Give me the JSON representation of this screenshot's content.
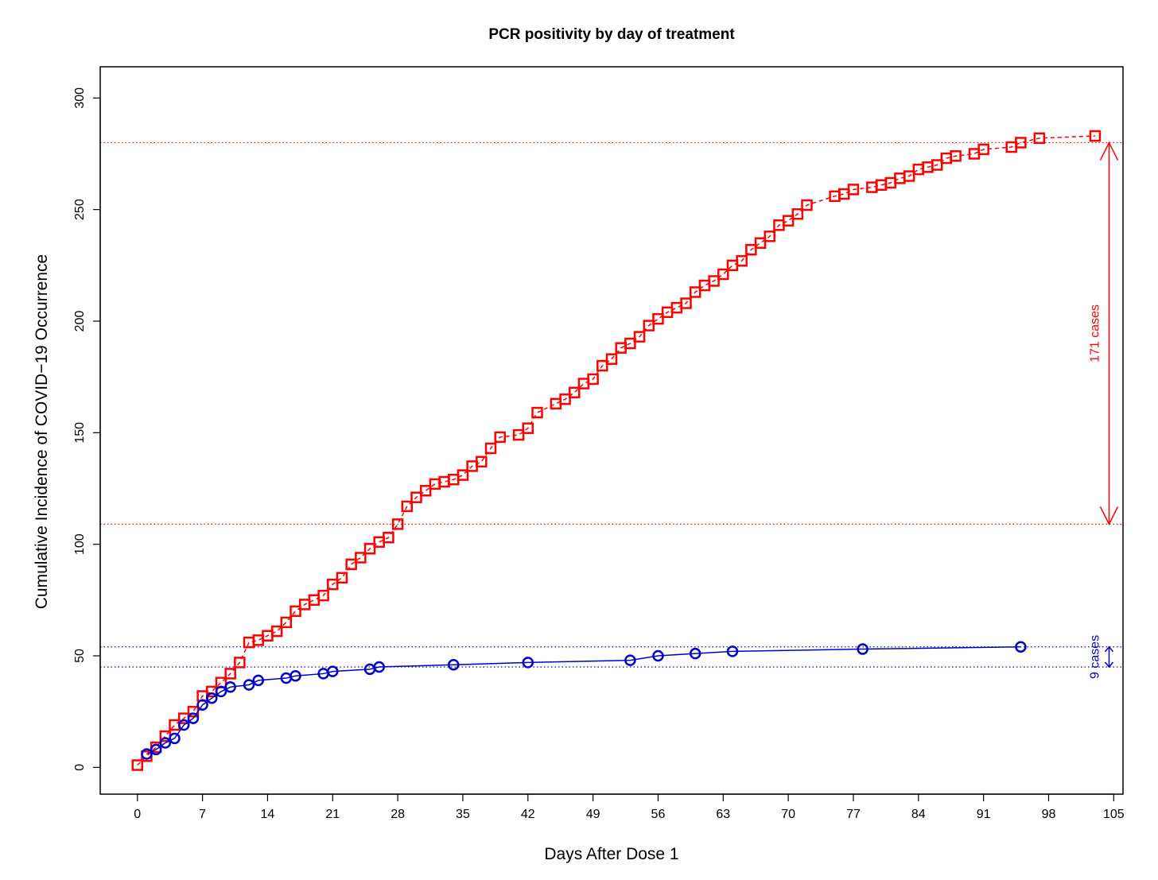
{
  "chart_data": {
    "type": "line",
    "title": "PCR positivity by day of treatment",
    "xlabel": "Days After Dose 1",
    "ylabel": "Cumulative Incidence of COVID−19 Occurrence",
    "xlim": [
      -4,
      106
    ],
    "ylim": [
      -12,
      314
    ],
    "x_ticks": [
      0,
      7,
      14,
      21,
      28,
      35,
      42,
      49,
      56,
      63,
      70,
      77,
      84,
      91,
      98,
      105
    ],
    "y_ticks": [
      0,
      50,
      100,
      150,
      200,
      250,
      300
    ],
    "grid": false,
    "legend": "none",
    "series": [
      {
        "color": "#ff0000",
        "marker": "square",
        "line": "dashed",
        "x": [
          0,
          1,
          2,
          3,
          4,
          5,
          6,
          7,
          8,
          9,
          10,
          11,
          12,
          13,
          14,
          15,
          16,
          17,
          18,
          19,
          20,
          21,
          22,
          23,
          24,
          25,
          26,
          27,
          28,
          29,
          30,
          31,
          32,
          33,
          34,
          35,
          36,
          37,
          38,
          39,
          41,
          42,
          43,
          45,
          46,
          47,
          48,
          49,
          50,
          51,
          52,
          53,
          54,
          55,
          56,
          57,
          58,
          59,
          60,
          61,
          62,
          63,
          64,
          65,
          66,
          67,
          68,
          69,
          70,
          71,
          72,
          75,
          76,
          77,
          79,
          80,
          81,
          82,
          83,
          84,
          85,
          86,
          87,
          88,
          90,
          91,
          94,
          95,
          97,
          103
        ],
        "y": [
          1,
          5,
          9,
          14,
          19,
          22,
          25,
          32,
          34,
          38,
          42,
          47,
          56,
          57,
          59,
          61,
          65,
          70,
          73,
          75,
          77,
          82,
          85,
          91,
          94,
          98,
          101,
          103,
          109,
          117,
          121,
          124,
          127,
          128,
          129,
          131,
          135,
          137,
          143,
          148,
          149,
          152,
          159,
          163,
          165,
          168,
          172,
          174,
          180,
          183,
          188,
          190,
          193,
          198,
          201,
          204,
          206,
          208,
          213,
          216,
          218,
          221,
          225,
          227,
          232,
          235,
          238,
          243,
          245,
          248,
          252,
          256,
          257,
          259,
          260,
          261,
          262,
          264,
          265,
          268,
          269,
          270,
          273,
          274,
          275,
          277,
          278,
          280,
          282,
          283
        ]
      },
      {
        "color": "#0000cd",
        "marker": "circle",
        "line": "solid",
        "x": [
          1,
          2,
          3,
          4,
          5,
          6,
          7,
          8,
          9,
          10,
          12,
          13,
          16,
          17,
          20,
          21,
          25,
          26,
          34,
          42,
          53,
          56,
          60,
          64,
          78,
          95
        ],
        "y": [
          6,
          8,
          11,
          13,
          19,
          22,
          28,
          31,
          34,
          36,
          37,
          39,
          40,
          41,
          42,
          43,
          44,
          45,
          46,
          47,
          48,
          50,
          51,
          52,
          53,
          54
        ]
      }
    ],
    "reference_lines": [
      {
        "y": 280,
        "color": "#ff0000"
      },
      {
        "y": 109,
        "color": "#ff0000"
      },
      {
        "y": 54,
        "color": "#0000cd"
      },
      {
        "y": 45,
        "color": "#0000cd"
      }
    ],
    "annotations": [
      {
        "text": "171 cases",
        "color": "#ff0000",
        "x": 104.5,
        "y_from": 109,
        "y_to": 280
      },
      {
        "text": "9 cases",
        "color": "#0000cd",
        "x": 104.5,
        "y_from": 45,
        "y_to": 54
      }
    ]
  }
}
